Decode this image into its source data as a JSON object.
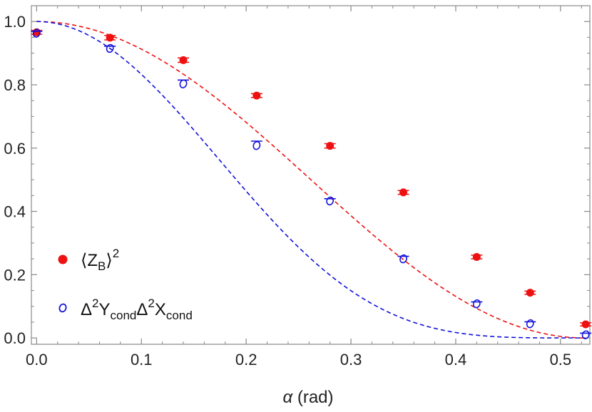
{
  "chart_data": {
    "type": "scatter",
    "xlabel_symbol": "α",
    "xlabel_unit": "(rad)",
    "xlim": [
      -0.005,
      0.528
    ],
    "ylim": [
      -0.02,
      1.05
    ],
    "xticks": [
      "0.0",
      "0.1",
      "0.2",
      "0.3",
      "0.4",
      "0.5"
    ],
    "xtick_values": [
      0.0,
      0.1,
      0.2,
      0.3,
      0.4,
      0.5
    ],
    "yticks": [
      "0.0",
      "0.2",
      "0.4",
      "0.6",
      "0.8",
      "1.0"
    ],
    "ytick_values": [
      0.0,
      0.2,
      0.4,
      0.6,
      0.8,
      1.0
    ],
    "grid": false,
    "legend_position": "bottom-left",
    "series": [
      {
        "marker": "filled-circle",
        "color": "#ee1111",
        "legend": {
          "open": "⟨Z",
          "sub": "B",
          "close": "⟩",
          "sup": "2"
        },
        "x": [
          0.0,
          0.07,
          0.14,
          0.21,
          0.28,
          0.35,
          0.42,
          0.471,
          0.524
        ],
        "y": [
          0.966,
          0.949,
          0.878,
          0.766,
          0.607,
          0.46,
          0.256,
          0.143,
          0.043
        ],
        "err": [
          0.006,
          0.007,
          0.007,
          0.006,
          0.007,
          0.006,
          0.006,
          0.005,
          0.005
        ]
      },
      {
        "marker": "open-circle",
        "color": "#1111dd",
        "legend": {
          "d1": "Δ",
          "s1": "2",
          "v1": "Y",
          "b1": "cond",
          "d2": "Δ",
          "s2": "2",
          "v2": "X",
          "b2": "cond"
        },
        "x": [
          0.0,
          0.07,
          0.14,
          0.21,
          0.28,
          0.35,
          0.42,
          0.471,
          0.524
        ],
        "y": [
          0.963,
          0.915,
          0.803,
          0.608,
          0.433,
          0.25,
          0.108,
          0.045,
          0.01
        ],
        "upper": [
          0.969,
          0.922,
          0.815,
          0.622,
          0.44,
          0.258,
          0.114,
          0.051,
          0.015
        ]
      }
    ],
    "curves": [
      {
        "color": "#ee1111",
        "style": "dashed",
        "function": "cos^2(3α)"
      },
      {
        "color": "#1111dd",
        "style": "dashed",
        "function": "cos^4(3α)"
      }
    ]
  }
}
